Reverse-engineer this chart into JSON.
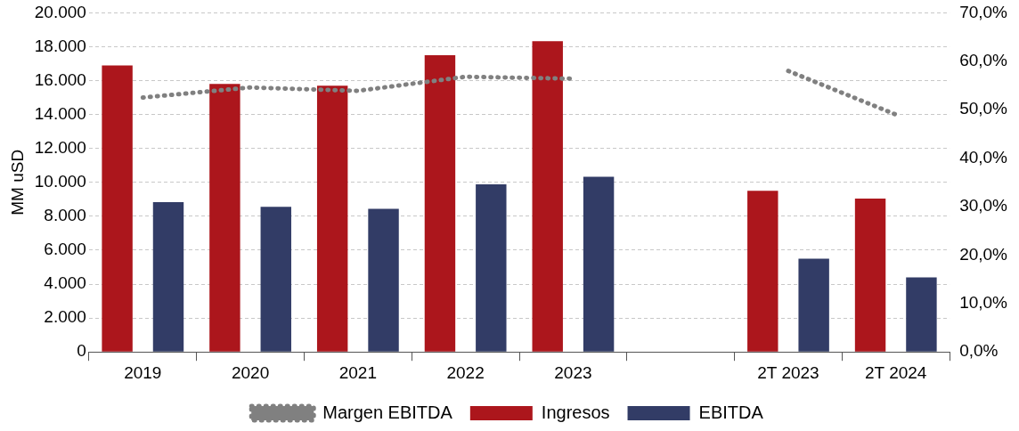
{
  "chart_data": {
    "type": "bar",
    "ylabel": "MM uSD",
    "categories": [
      "2019",
      "2020",
      "2021",
      "2022",
      "2023",
      null,
      "2T 2023",
      "2T 2024"
    ],
    "series": [
      {
        "name": "Ingresos",
        "color": "#ac161c",
        "values": [
          16900,
          15800,
          15700,
          17500,
          18330,
          null,
          9500,
          9050
        ]
      },
      {
        "name": "EBITDA",
        "color": "#323c66",
        "values": [
          8830,
          8560,
          8440,
          9890,
          10330,
          null,
          5500,
          4390
        ]
      },
      {
        "name": "Margen EBITDA",
        "type": "line",
        "axis": "y2",
        "color": "#808080",
        "line_style": "dotted",
        "marker": "none",
        "values": [
          52.5,
          54.6,
          53.9,
          56.8,
          56.4,
          null,
          58.0,
          49.0
        ]
      }
    ],
    "ylim": [
      0,
      20000
    ],
    "yticks": [
      {
        "value": 0,
        "label": "0"
      },
      {
        "value": 2000,
        "label": "2.000"
      },
      {
        "value": 4000,
        "label": "4.000"
      },
      {
        "value": 6000,
        "label": "6.000"
      },
      {
        "value": 8000,
        "label": "8.000"
      },
      {
        "value": 10000,
        "label": "10.000"
      },
      {
        "value": 12000,
        "label": "12.000"
      },
      {
        "value": 14000,
        "label": "14.000"
      },
      {
        "value": 16000,
        "label": "16.000"
      },
      {
        "value": 18000,
        "label": "18.000"
      },
      {
        "value": 20000,
        "label": "20.000"
      }
    ],
    "y2lim": [
      0,
      70
    ],
    "y2ticks": [
      {
        "value": 0,
        "label": "0,0%"
      },
      {
        "value": 10,
        "label": "10,0%"
      },
      {
        "value": 20,
        "label": "20,0%"
      },
      {
        "value": 30,
        "label": "30,0%"
      },
      {
        "value": 40,
        "label": "40,0%"
      },
      {
        "value": 50,
        "label": "50,0%"
      },
      {
        "value": 60,
        "label": "60,0%"
      },
      {
        "value": 70,
        "label": "70,0%"
      }
    ],
    "grid": "y",
    "legend": "bottom"
  }
}
